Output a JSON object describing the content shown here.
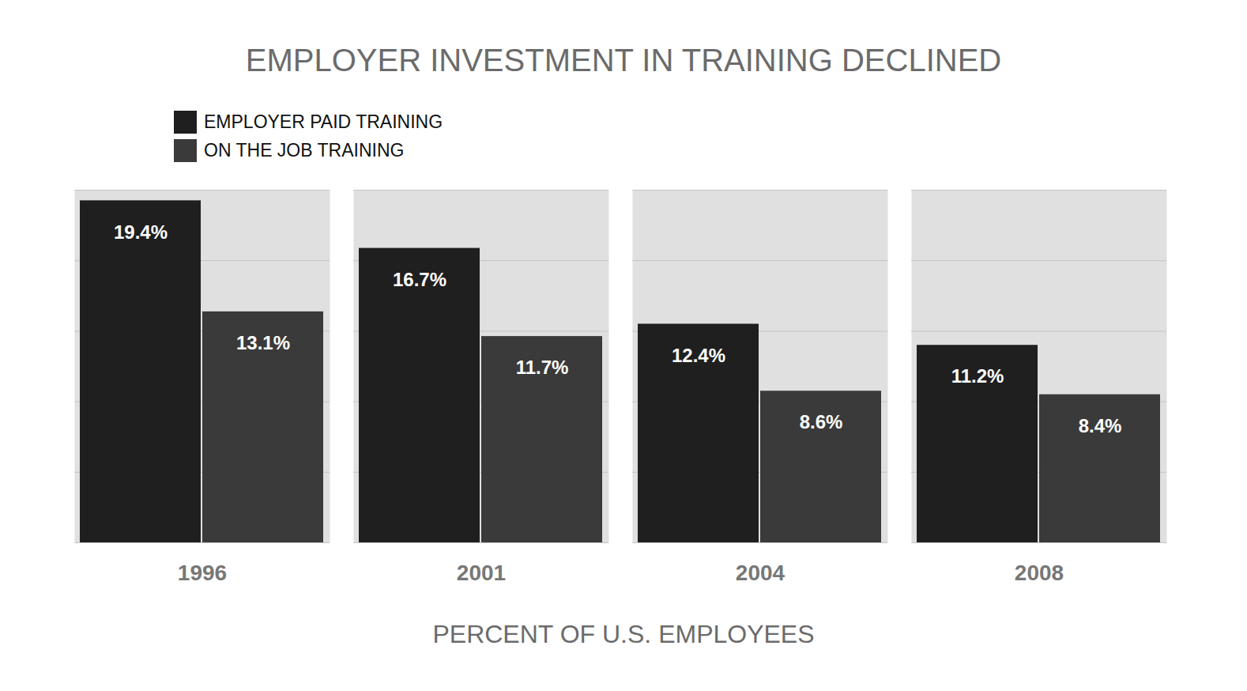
{
  "chart_data": {
    "type": "bar",
    "title": "EMPLOYER INVESTMENT IN TRAINING DECLINED",
    "xlabel": "PERCENT OF U.S. EMPLOYEES",
    "categories": [
      "1996",
      "2001",
      "2004",
      "2008"
    ],
    "series": [
      {
        "name": "EMPLOYER PAID TRAINING",
        "color": "#1f1f1f",
        "values": [
          19.4,
          16.7,
          12.4,
          11.2
        ],
        "value_labels": [
          "19.4%",
          "16.7%",
          "12.4%",
          "11.2%"
        ]
      },
      {
        "name": "ON THE JOB TRAINING",
        "color": "#3a3a3a",
        "values": [
          13.1,
          11.7,
          8.6,
          8.4
        ],
        "value_labels": [
          "13.1%",
          "11.7%",
          "8.6%",
          "8.4%"
        ]
      }
    ],
    "ylim": [
      0,
      20
    ],
    "yticks": [
      0,
      4,
      8,
      12,
      16,
      20
    ],
    "grid": true,
    "data_labels": true,
    "tick_labels": "x",
    "legend": "top-left"
  }
}
